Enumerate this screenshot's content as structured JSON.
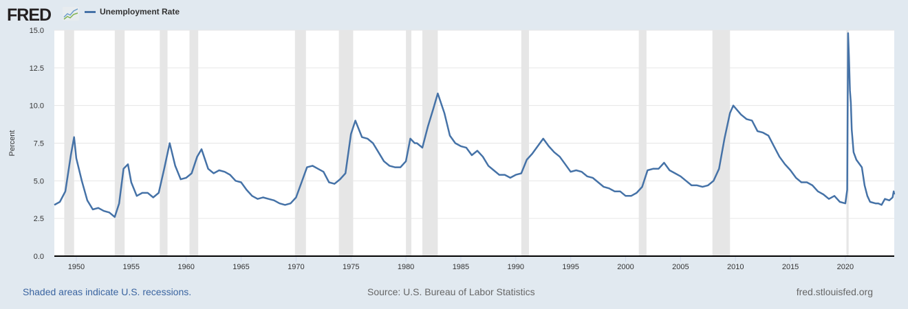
{
  "header": {
    "logo_text": "FRED",
    "logo_icon": "line-chart-icon"
  },
  "legend": {
    "series_label": "Unemployment Rate",
    "color": "#4572a7"
  },
  "footer": {
    "recession_note": "Shaded areas indicate U.S. recessions.",
    "source": "Source: U.S. Bureau of Labor Statistics",
    "site": "fred.stlouisfed.org"
  },
  "chart_data": {
    "type": "line",
    "title": "",
    "xlabel": "",
    "ylabel": "Percent",
    "xlim": [
      1948.0,
      2024.45
    ],
    "ylim": [
      0,
      15
    ],
    "yticks": [
      0.0,
      2.5,
      5.0,
      7.5,
      10.0,
      12.5,
      15.0
    ],
    "ytick_labels": [
      "0.0",
      "2.5",
      "5.0",
      "7.5",
      "10.0",
      "12.5",
      "15.0"
    ],
    "xticks": [
      1950,
      1955,
      1960,
      1965,
      1970,
      1975,
      1980,
      1985,
      1990,
      1995,
      2000,
      2005,
      2010,
      2015,
      2020
    ],
    "xtick_labels": [
      "1950",
      "1955",
      "1960",
      "1965",
      "1970",
      "1975",
      "1980",
      "1985",
      "1990",
      "1995",
      "2000",
      "2005",
      "2010",
      "2015",
      "2020"
    ],
    "grid": "horizontal",
    "line_color": "#4572a7",
    "recession_color": "#e6e6e6",
    "recessions": [
      [
        1948.9,
        1949.8
      ],
      [
        1953.5,
        1954.4
      ],
      [
        1957.6,
        1958.3
      ],
      [
        1960.3,
        1961.1
      ],
      [
        1969.9,
        1970.9
      ],
      [
        1973.9,
        1975.2
      ],
      [
        1980.0,
        1980.5
      ],
      [
        1981.5,
        1982.9
      ],
      [
        1990.5,
        1991.2
      ],
      [
        2001.2,
        2001.9
      ],
      [
        2007.9,
        2009.5
      ],
      [
        2020.1,
        2020.3
      ]
    ],
    "series": [
      {
        "name": "Unemployment Rate",
        "x": [
          1948.0,
          1948.5,
          1949.0,
          1949.5,
          1949.8,
          1950.0,
          1950.5,
          1951.0,
          1951.5,
          1952.0,
          1952.5,
          1953.0,
          1953.5,
          1953.9,
          1954.3,
          1954.7,
          1955.0,
          1955.5,
          1956.0,
          1956.5,
          1957.0,
          1957.5,
          1958.0,
          1958.5,
          1959.0,
          1959.5,
          1960.0,
          1960.5,
          1961.0,
          1961.4,
          1962.0,
          1962.5,
          1963.0,
          1963.5,
          1964.0,
          1964.5,
          1965.0,
          1965.5,
          1966.0,
          1966.5,
          1967.0,
          1967.5,
          1968.0,
          1968.5,
          1969.0,
          1969.5,
          1970.0,
          1970.5,
          1971.0,
          1971.5,
          1972.0,
          1972.5,
          1973.0,
          1973.5,
          1974.0,
          1974.5,
          1975.0,
          1975.4,
          1976.0,
          1976.5,
          1977.0,
          1977.5,
          1978.0,
          1978.5,
          1979.0,
          1979.5,
          1980.0,
          1980.4,
          1980.8,
          1981.0,
          1981.5,
          1982.0,
          1982.5,
          1982.9,
          1983.5,
          1984.0,
          1984.5,
          1985.0,
          1985.5,
          1986.0,
          1986.5,
          1987.0,
          1987.5,
          1988.0,
          1988.5,
          1989.0,
          1989.5,
          1990.0,
          1990.5,
          1991.0,
          1991.5,
          1992.0,
          1992.5,
          1993.0,
          1993.5,
          1994.0,
          1994.5,
          1995.0,
          1995.5,
          1996.0,
          1996.5,
          1997.0,
          1997.5,
          1998.0,
          1998.5,
          1999.0,
          1999.5,
          2000.0,
          2000.5,
          2001.0,
          2001.5,
          2002.0,
          2002.5,
          2003.0,
          2003.5,
          2004.0,
          2004.5,
          2005.0,
          2005.5,
          2006.0,
          2006.5,
          2007.0,
          2007.5,
          2008.0,
          2008.5,
          2009.0,
          2009.5,
          2009.8,
          2010.5,
          2011.0,
          2011.5,
          2012.0,
          2012.5,
          2013.0,
          2013.5,
          2014.0,
          2014.5,
          2015.0,
          2015.5,
          2016.0,
          2016.5,
          2017.0,
          2017.5,
          2018.0,
          2018.5,
          2019.0,
          2019.5,
          2020.0,
          2020.17,
          2020.25,
          2020.33,
          2020.42,
          2020.5,
          2020.58,
          2020.75,
          2021.0,
          2021.5,
          2021.75,
          2022.0,
          2022.25,
          2022.75,
          2023.0,
          2023.3,
          2023.6,
          2024.0,
          2024.3,
          2024.4,
          2024.45
        ],
        "values": [
          3.4,
          3.6,
          4.3,
          6.7,
          7.9,
          6.5,
          5.0,
          3.7,
          3.1,
          3.2,
          3.0,
          2.9,
          2.6,
          3.5,
          5.8,
          6.1,
          4.9,
          4.0,
          4.2,
          4.2,
          3.9,
          4.2,
          5.8,
          7.5,
          6.0,
          5.1,
          5.2,
          5.5,
          6.6,
          7.1,
          5.8,
          5.5,
          5.7,
          5.6,
          5.4,
          5.0,
          4.9,
          4.4,
          4.0,
          3.8,
          3.9,
          3.8,
          3.7,
          3.5,
          3.4,
          3.5,
          3.9,
          4.9,
          5.9,
          6.0,
          5.8,
          5.6,
          4.9,
          4.8,
          5.1,
          5.5,
          8.1,
          9.0,
          7.9,
          7.8,
          7.5,
          6.9,
          6.3,
          6.0,
          5.9,
          5.9,
          6.3,
          7.8,
          7.5,
          7.5,
          7.2,
          8.6,
          9.8,
          10.8,
          9.5,
          8.0,
          7.5,
          7.3,
          7.2,
          6.7,
          7.0,
          6.6,
          6.0,
          5.7,
          5.4,
          5.4,
          5.2,
          5.4,
          5.5,
          6.4,
          6.8,
          7.3,
          7.8,
          7.3,
          6.9,
          6.6,
          6.1,
          5.6,
          5.7,
          5.6,
          5.3,
          5.2,
          4.9,
          4.6,
          4.5,
          4.3,
          4.3,
          4.0,
          4.0,
          4.2,
          4.6,
          5.7,
          5.8,
          5.8,
          6.2,
          5.7,
          5.5,
          5.3,
          5.0,
          4.7,
          4.7,
          4.6,
          4.7,
          5.0,
          5.8,
          7.8,
          9.5,
          10.0,
          9.4,
          9.1,
          9.0,
          8.3,
          8.2,
          8.0,
          7.3,
          6.6,
          6.1,
          5.7,
          5.2,
          4.9,
          4.9,
          4.7,
          4.3,
          4.1,
          3.8,
          4.0,
          3.6,
          3.5,
          4.4,
          14.8,
          13.2,
          11.0,
          10.2,
          8.4,
          6.9,
          6.4,
          5.9,
          4.7,
          4.0,
          3.6,
          3.5,
          3.5,
          3.4,
          3.8,
          3.7,
          3.9,
          4.3,
          4.1
        ]
      }
    ]
  }
}
